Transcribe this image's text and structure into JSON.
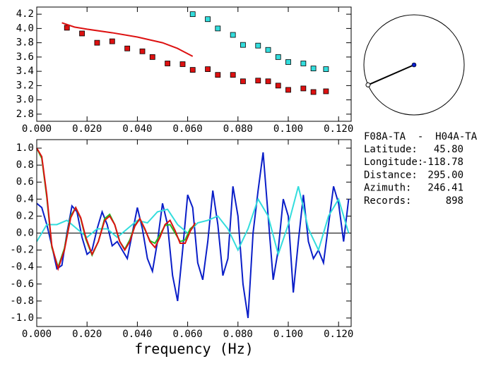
{
  "chart_data": [
    {
      "type": "scatter",
      "xlim": [
        0,
        0.125
      ],
      "xticks": [
        {
          "value": 0,
          "label": "0.000"
        },
        {
          "value": 0.02,
          "label": "0.020"
        },
        {
          "value": 0.04,
          "label": "0.040"
        },
        {
          "value": 0.06,
          "label": "0.060"
        },
        {
          "value": 0.08,
          "label": "0.080"
        },
        {
          "value": 0.1,
          "label": "0.100"
        },
        {
          "value": 0.12,
          "label": "0.120"
        }
      ],
      "ylim": [
        2.7,
        4.3
      ],
      "yticks": [
        2.8,
        {
          "value": 3,
          "label": "3.0"
        },
        3.2,
        3.4,
        3.6,
        3.8,
        {
          "value": 4,
          "label": "4.0"
        },
        4.2
      ],
      "series": [
        {
          "mode": "markers",
          "color": "#dd1111",
          "x": [
            0.012,
            0.018,
            0.024,
            0.03,
            0.036,
            0.042,
            0.046,
            0.052,
            0.058,
            0.062,
            0.068,
            0.072,
            0.078,
            0.082,
            0.088,
            0.092,
            0.096,
            0.1,
            0.106,
            0.11,
            0.115
          ],
          "values": [
            4.01,
            3.93,
            3.8,
            3.82,
            3.72,
            3.68,
            3.6,
            3.51,
            3.5,
            3.42,
            3.43,
            3.35,
            3.35,
            3.26,
            3.27,
            3.26,
            3.2,
            3.14,
            3.16,
            3.11,
            3.12
          ]
        },
        {
          "mode": "markers",
          "color": "#33dddd",
          "x": [
            0.062,
            0.068,
            0.072,
            0.078,
            0.082,
            0.088,
            0.092,
            0.096,
            0.1,
            0.106,
            0.11,
            0.115
          ],
          "values": [
            4.2,
            4.13,
            4.0,
            3.91,
            3.77,
            3.76,
            3.7,
            3.6,
            3.53,
            3.51,
            3.44,
            3.43
          ]
        },
        {
          "mode": "lines",
          "color": "#dd1111",
          "x": [
            0.01,
            0.015,
            0.02,
            0.03,
            0.04,
            0.05,
            0.056,
            0.062
          ],
          "values": [
            4.08,
            4.02,
            3.99,
            3.94,
            3.88,
            3.8,
            3.72,
            3.61
          ]
        }
      ]
    },
    {
      "type": "line",
      "x_label": "frequency (Hz)",
      "xlim": [
        0,
        0.125
      ],
      "xticks": [
        {
          "value": 0,
          "label": "0.000"
        },
        {
          "value": 0.02,
          "label": "0.020"
        },
        {
          "value": 0.04,
          "label": "0.040"
        },
        {
          "value": 0.06,
          "label": "0.060"
        },
        {
          "value": 0.08,
          "label": "0.080"
        },
        {
          "value": 0.1,
          "label": "0.100"
        },
        {
          "value": 0.12,
          "label": "0.120"
        }
      ],
      "ylim": [
        -1.1,
        1.1
      ],
      "yticks": [
        {
          "value": -1,
          "label": "-1.0"
        },
        -0.8,
        -0.6,
        -0.4,
        -0.2,
        {
          "value": 0,
          "label": "0.0"
        },
        0.2,
        0.4,
        0.6,
        0.8,
        {
          "value": 1,
          "label": "1.0"
        }
      ],
      "series": [
        {
          "mode": "lines",
          "color": "#0a1ec8",
          "x": [
            0,
            0.002,
            0.004,
            0.006,
            0.008,
            0.01,
            0.012,
            0.014,
            0.016,
            0.018,
            0.02,
            0.022,
            0.024,
            0.026,
            0.028,
            0.03,
            0.032,
            0.034,
            0.036,
            0.038,
            0.04,
            0.042,
            0.044,
            0.046,
            0.048,
            0.05,
            0.052,
            0.054,
            0.056,
            0.058,
            0.06,
            0.062,
            0.064,
            0.066,
            0.068,
            0.07,
            0.072,
            0.074,
            0.076,
            0.078,
            0.08,
            0.082,
            0.084,
            0.086,
            0.088,
            0.09,
            0.092,
            0.094,
            0.096,
            0.098,
            0.1,
            0.102,
            0.104,
            0.106,
            0.108,
            0.11,
            0.112,
            0.114,
            0.116,
            0.118,
            0.12,
            0.122,
            0.124
          ],
          "values": [
            0.35,
            0.3,
            0.1,
            -0.15,
            -0.42,
            -0.38,
            0.0,
            0.32,
            0.25,
            -0.05,
            -0.25,
            -0.2,
            0.05,
            0.25,
            0.1,
            -0.15,
            -0.1,
            -0.2,
            -0.3,
            0.0,
            0.3,
            0.05,
            -0.3,
            -0.45,
            -0.1,
            0.35,
            0.1,
            -0.5,
            -0.8,
            -0.2,
            0.45,
            0.3,
            -0.35,
            -0.55,
            -0.1,
            0.5,
            0.1,
            -0.5,
            -0.3,
            0.55,
            0.2,
            -0.6,
            -1.0,
            0.0,
            0.5,
            0.95,
            0.2,
            -0.55,
            -0.2,
            0.4,
            0.2,
            -0.7,
            -0.1,
            0.45,
            -0.1,
            -0.3,
            -0.2,
            -0.35,
            0.1,
            0.55,
            0.35,
            -0.1,
            0.4
          ]
        },
        {
          "mode": "lines",
          "color": "#33dddd",
          "x": [
            0,
            0.004,
            0.008,
            0.012,
            0.016,
            0.02,
            0.024,
            0.028,
            0.032,
            0.036,
            0.04,
            0.044,
            0.048,
            0.052,
            0.056,
            0.06,
            0.064,
            0.068,
            0.072,
            0.076,
            0.08,
            0.084,
            0.088,
            0.092,
            0.096,
            0.1,
            0.104,
            0.108,
            0.112,
            0.116,
            0.12,
            0.124
          ],
          "values": [
            -0.1,
            0.1,
            0.1,
            0.15,
            0.05,
            -0.05,
            0.05,
            0.05,
            -0.05,
            0.05,
            0.15,
            0.12,
            0.25,
            0.28,
            0.1,
            0.0,
            0.12,
            0.15,
            0.2,
            0.05,
            -0.2,
            0.05,
            0.4,
            0.2,
            -0.25,
            0.1,
            0.55,
            0.05,
            -0.2,
            0.2,
            0.4,
            0.0
          ]
        },
        {
          "mode": "lines",
          "color": "#22bb22",
          "x": [
            0,
            0.002,
            0.004,
            0.006,
            0.0085,
            0.011,
            0.0135,
            0.0155,
            0.0175,
            0.0195,
            0.022,
            0.0245,
            0.027,
            0.029,
            0.031,
            0.033,
            0.035,
            0.037,
            0.039,
            0.041,
            0.043,
            0.045,
            0.047,
            0.049,
            0.051,
            0.053,
            0.055,
            0.057,
            0.059,
            0.061,
            0.063
          ],
          "values": [
            1.0,
            0.88,
            0.42,
            -0.17,
            -0.4,
            -0.18,
            0.2,
            0.3,
            0.17,
            -0.07,
            -0.26,
            -0.1,
            0.17,
            0.22,
            0.1,
            -0.1,
            -0.19,
            -0.08,
            0.09,
            0.17,
            0.04,
            -0.09,
            -0.12,
            -0.02,
            0.09,
            0.1,
            0.0,
            -0.1,
            -0.08,
            0.05,
            0.1
          ]
        },
        {
          "mode": "lines",
          "color": "#dd1111",
          "x": [
            0,
            0.002,
            0.004,
            0.006,
            0.0085,
            0.011,
            0.0135,
            0.0155,
            0.0175,
            0.0195,
            0.022,
            0.0245,
            0.027,
            0.029,
            0.031,
            0.033,
            0.035,
            0.037,
            0.039,
            0.041,
            0.043,
            0.045,
            0.047,
            0.049,
            0.051,
            0.053,
            0.055,
            0.057,
            0.059,
            0.061,
            0.063
          ],
          "values": [
            1.0,
            0.9,
            0.45,
            -0.15,
            -0.42,
            -0.2,
            0.18,
            0.3,
            0.18,
            -0.05,
            -0.25,
            -0.1,
            0.15,
            0.2,
            0.1,
            -0.1,
            -0.2,
            -0.1,
            0.08,
            0.17,
            0.05,
            -0.1,
            -0.17,
            -0.05,
            0.1,
            0.15,
            0.03,
            -0.12,
            -0.12,
            0.02,
            0.12
          ]
        }
      ]
    }
  ],
  "info": {
    "pair": "F08A-TA  -  H04A-TA",
    "rows": [
      [
        "Latitude:",
        "45.80"
      ],
      [
        "Longitude:",
        "-118.78"
      ],
      [
        "Distance:",
        "295.00"
      ],
      [
        "Azimuth:",
        "246.41"
      ],
      [
        "Records:",
        "898"
      ]
    ],
    "azimuth": 246.41
  }
}
